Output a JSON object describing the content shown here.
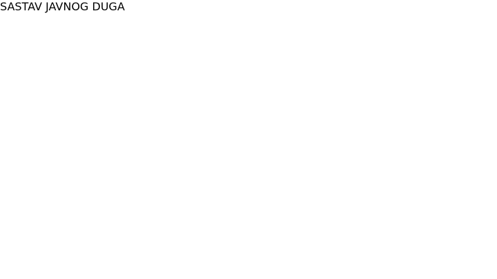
{
  "title": "SASTAV JAVNOG DUGA"
}
